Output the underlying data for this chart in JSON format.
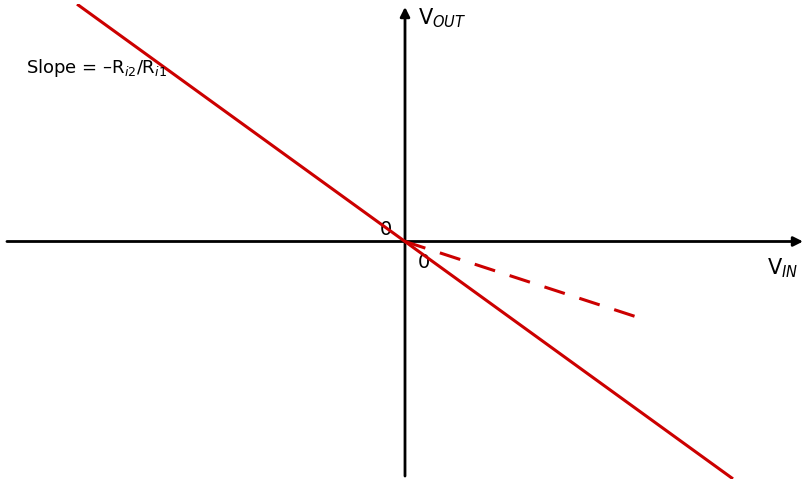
{
  "background_color": "#ffffff",
  "axis_color": "#000000",
  "line_color": "#cc0000",
  "slope_solid": -1.0,
  "slope_dashed": -0.45,
  "label_slope": "Slope = –R$_{i2}$/R$_{i1}$",
  "label_vout": "V$_{OUT}$",
  "label_vin": "V$_{IN}$",
  "label_zero_left": "0",
  "label_zero_below": "0",
  "xlim": [
    -5.5,
    5.5
  ],
  "ylim": [
    -4.5,
    4.5
  ],
  "line_width": 2.2,
  "font_size_labels": 15,
  "font_size_zero": 14,
  "font_size_slope": 13,
  "arrow_lw": 2.0,
  "arrow_mutation_scale": 14
}
